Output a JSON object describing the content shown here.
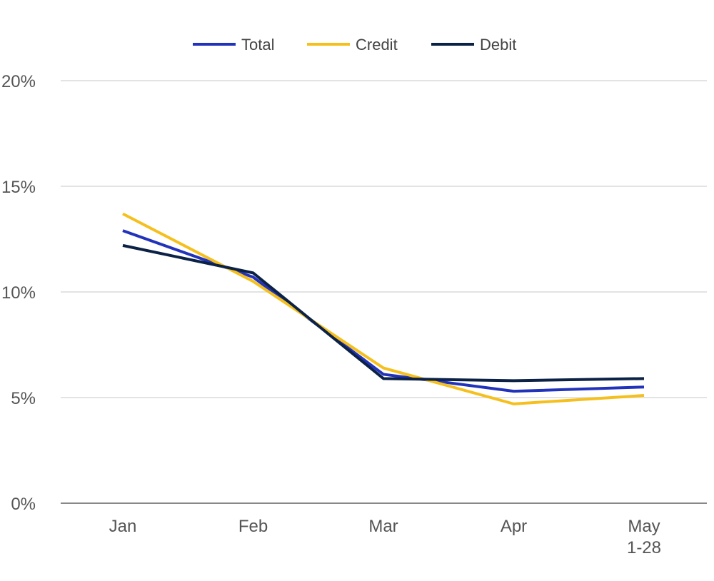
{
  "chart_data": {
    "type": "line",
    "categories": [
      [
        "Jan"
      ],
      [
        "Feb"
      ],
      [
        "Mar"
      ],
      [
        "Apr"
      ],
      [
        "May",
        "1-28"
      ]
    ],
    "series": [
      {
        "name": "Total",
        "color": "#2233bb",
        "values": [
          12.9,
          10.7,
          6.1,
          5.3,
          5.5
        ]
      },
      {
        "name": "Credit",
        "color": "#f5c01d",
        "values": [
          13.7,
          10.5,
          6.4,
          4.7,
          5.1
        ]
      },
      {
        "name": "Debit",
        "color": "#0b2146",
        "values": [
          12.2,
          10.9,
          5.9,
          5.8,
          5.9
        ]
      }
    ],
    "ylim": [
      0,
      20
    ],
    "yticks": [
      0,
      5,
      10,
      15,
      20
    ],
    "ytick_labels": [
      "0%",
      "5%",
      "10%",
      "15%",
      "20%"
    ],
    "grid": true,
    "legend_position": "top-center",
    "title": "",
    "xlabel": "",
    "ylabel": ""
  }
}
